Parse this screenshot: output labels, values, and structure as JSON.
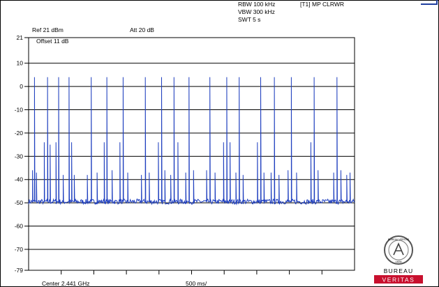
{
  "header": {
    "rbw": "RBW 100 kHz",
    "vbw": "VBW 300 kHz",
    "swt": "SWT 5 s",
    "trace_mode": "[T1] MP CLRWR",
    "ref_level": "Ref 21 dBm",
    "attenuation": "Att 20 dB",
    "offset": "Offset 11 dB"
  },
  "footer": {
    "center": "Center 2.441 GHz",
    "span_per_div": "500 ms/"
  },
  "logo": {
    "brand_top": "BUREAU",
    "brand_bottom": "VERITAS",
    "ring_text": "BUREAU VERITAS",
    "year": "1828"
  },
  "colors": {
    "trace": "#1f3fbf",
    "grid": "#000000",
    "logo_red": "#c8102e"
  },
  "chart_data": {
    "type": "line",
    "title": "",
    "xlabel": "",
    "ylabel": "",
    "x_unit": "ms",
    "xlim": [
      0,
      5000
    ],
    "ylim": [
      -79,
      21
    ],
    "y_ticks": [
      21,
      10,
      0,
      -10,
      -20,
      -30,
      -40,
      -50,
      -60,
      -70,
      -79
    ],
    "x_divisions": 10,
    "grid": true,
    "noise_floor_dbm": -49.5,
    "series": [
      {
        "peaks": [
          {
            "t": 60,
            "dbm": -36
          },
          {
            "t": 90,
            "dbm": 4
          },
          {
            "t": 120,
            "dbm": -37
          },
          {
            "t": 240,
            "dbm": -24
          },
          {
            "t": 290,
            "dbm": 4
          },
          {
            "t": 330,
            "dbm": -25
          },
          {
            "t": 420,
            "dbm": -24
          },
          {
            "t": 460,
            "dbm": 4
          },
          {
            "t": 530,
            "dbm": -38
          },
          {
            "t": 620,
            "dbm": 4
          },
          {
            "t": 660,
            "dbm": -24
          },
          {
            "t": 700,
            "dbm": -38
          },
          {
            "t": 900,
            "dbm": -38
          },
          {
            "t": 960,
            "dbm": 4
          },
          {
            "t": 1050,
            "dbm": -37
          },
          {
            "t": 1160,
            "dbm": -24
          },
          {
            "t": 1200,
            "dbm": 4
          },
          {
            "t": 1280,
            "dbm": -36
          },
          {
            "t": 1400,
            "dbm": -24
          },
          {
            "t": 1450,
            "dbm": 4
          },
          {
            "t": 1520,
            "dbm": -37
          },
          {
            "t": 1730,
            "dbm": -38
          },
          {
            "t": 1790,
            "dbm": 4
          },
          {
            "t": 1850,
            "dbm": -37
          },
          {
            "t": 1990,
            "dbm": -24
          },
          {
            "t": 2040,
            "dbm": 4
          },
          {
            "t": 2090,
            "dbm": -36
          },
          {
            "t": 2180,
            "dbm": -38
          },
          {
            "t": 2230,
            "dbm": 4
          },
          {
            "t": 2290,
            "dbm": -24
          },
          {
            "t": 2410,
            "dbm": -37
          },
          {
            "t": 2460,
            "dbm": 4
          },
          {
            "t": 2530,
            "dbm": -36
          },
          {
            "t": 2730,
            "dbm": -36
          },
          {
            "t": 2780,
            "dbm": 4
          },
          {
            "t": 2860,
            "dbm": -37
          },
          {
            "t": 2990,
            "dbm": -24
          },
          {
            "t": 3040,
            "dbm": 4
          },
          {
            "t": 3090,
            "dbm": -24
          },
          {
            "t": 3180,
            "dbm": -37
          },
          {
            "t": 3230,
            "dbm": 4
          },
          {
            "t": 3290,
            "dbm": -38
          },
          {
            "t": 3510,
            "dbm": -24
          },
          {
            "t": 3560,
            "dbm": 4
          },
          {
            "t": 3610,
            "dbm": -37
          },
          {
            "t": 3720,
            "dbm": -37
          },
          {
            "t": 3770,
            "dbm": 4
          },
          {
            "t": 3840,
            "dbm": -38
          },
          {
            "t": 3980,
            "dbm": -36
          },
          {
            "t": 4030,
            "dbm": 4
          },
          {
            "t": 4110,
            "dbm": -37
          },
          {
            "t": 4330,
            "dbm": -24
          },
          {
            "t": 4380,
            "dbm": 4
          },
          {
            "t": 4440,
            "dbm": -36
          },
          {
            "t": 4680,
            "dbm": -37
          },
          {
            "t": 4730,
            "dbm": 4
          },
          {
            "t": 4790,
            "dbm": -36
          },
          {
            "t": 4880,
            "dbm": -38
          },
          {
            "t": 4930,
            "dbm": -37
          }
        ]
      }
    ]
  }
}
